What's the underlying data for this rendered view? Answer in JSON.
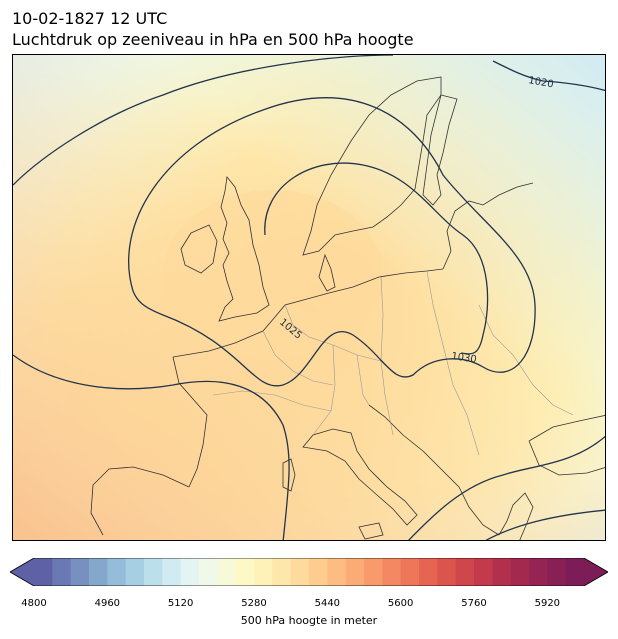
{
  "header": {
    "datetime": "10-02-1827 12 UTC",
    "subtitle": "Luchtdruk op zeeniveau in hPa en 500 hPa hoogte"
  },
  "map": {
    "isobar_labels": [
      "1020",
      "1025",
      "1030"
    ],
    "isobar_color": "#22344d",
    "coastline_color": "#333333",
    "border_color": "#9a9a9a"
  },
  "colorbar": {
    "label": "500 hPa hoogte in meter",
    "min": 4800,
    "max": 5960,
    "step": 40,
    "extend": "both",
    "ticks": [
      "4800",
      "4960",
      "5120",
      "5280",
      "5440",
      "5600",
      "5760",
      "5920"
    ],
    "colors": [
      "#5e61a6",
      "#6a78b3",
      "#7790bf",
      "#85a7cc",
      "#95bcd8",
      "#a7cfe3",
      "#bcdfec",
      "#d1ebf2",
      "#e4f4f3",
      "#f0f8ea",
      "#f7fad8",
      "#fdf9c6",
      "#fef2b8",
      "#fee7aa",
      "#fedb9c",
      "#fdcc8e",
      "#fcbc82",
      "#fbab76",
      "#f89a6c",
      "#f48862",
      "#ee7659",
      "#e66552",
      "#dc554d",
      "#d0474b",
      "#c23a4b",
      "#b3304c",
      "#a3294e",
      "#952453",
      "#882056",
      "#7c1d58"
    ]
  }
}
